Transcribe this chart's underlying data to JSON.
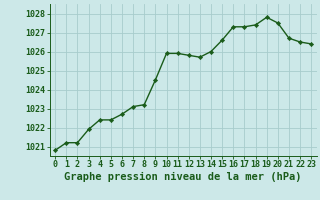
{
  "x": [
    0,
    1,
    2,
    3,
    4,
    5,
    6,
    7,
    8,
    9,
    10,
    11,
    12,
    13,
    14,
    15,
    16,
    17,
    18,
    19,
    20,
    21,
    22,
    23
  ],
  "y": [
    1020.8,
    1021.2,
    1021.2,
    1021.9,
    1022.4,
    1022.4,
    1022.7,
    1023.1,
    1023.2,
    1024.5,
    1025.9,
    1025.9,
    1025.8,
    1025.7,
    1026.0,
    1026.6,
    1027.3,
    1027.3,
    1027.4,
    1027.8,
    1027.5,
    1026.7,
    1026.5,
    1026.4
  ],
  "line_color": "#1a5c1a",
  "marker": "D",
  "marker_size": 2.2,
  "line_width": 1.0,
  "bg_color": "#cce8e8",
  "grid_color": "#a8cccc",
  "title": "Graphe pression niveau de la mer (hPa)",
  "ylim": [
    1020.5,
    1028.5
  ],
  "xlim": [
    -0.5,
    23.5
  ],
  "yticks": [
    1021,
    1022,
    1023,
    1024,
    1025,
    1026,
    1027,
    1028
  ],
  "xticks": [
    0,
    1,
    2,
    3,
    4,
    5,
    6,
    7,
    8,
    9,
    10,
    11,
    12,
    13,
    14,
    15,
    16,
    17,
    18,
    19,
    20,
    21,
    22,
    23
  ],
  "title_fontsize": 7.5,
  "tick_fontsize": 6.0,
  "title_color": "#1a5c1a",
  "tick_color": "#1a5c1a",
  "axis_color": "#1a5c1a"
}
